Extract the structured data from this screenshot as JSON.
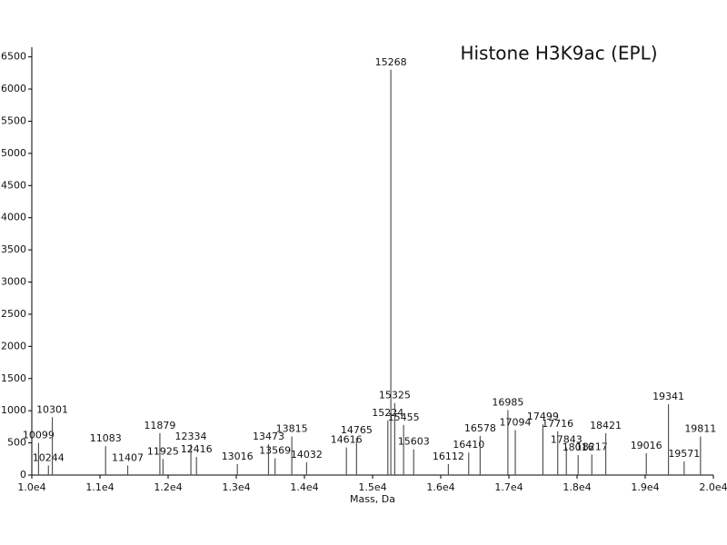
{
  "chart_data": {
    "type": "spectrum",
    "title": "Histone H3K9ac (EPL)",
    "x_label": "Mass, Da",
    "color": "#555555",
    "x": [
      10099,
      10244,
      10301,
      11083,
      11407,
      11879,
      11925,
      12334,
      12416,
      13016,
      13473,
      13569,
      13815,
      14032,
      14616,
      14765,
      15224,
      15268,
      15325,
      15455,
      15603,
      16112,
      16410,
      16578,
      16985,
      17094,
      17499,
      17716,
      17843,
      18016,
      18217,
      18421,
      19016,
      19341,
      19571,
      19811
    ],
    "values": [
      500,
      150,
      900,
      450,
      150,
      650,
      250,
      480,
      280,
      170,
      480,
      260,
      600,
      200,
      430,
      580,
      850,
      6300,
      1120,
      780,
      400,
      170,
      350,
      610,
      1010,
      700,
      790,
      680,
      430,
      310,
      320,
      650,
      340,
      1100,
      210,
      600
    ],
    "xlim": [
      10000,
      20000
    ],
    "xticks": [
      {
        "value": 10000,
        "label": "1.0e4"
      },
      {
        "value": 11000,
        "label": "1.1e4"
      },
      {
        "value": 12000,
        "label": "1.2e4"
      },
      {
        "value": 13000,
        "label": "1.3e4"
      },
      {
        "value": 14000,
        "label": "1.4e4"
      },
      {
        "value": 15000,
        "label": "1.5e4"
      },
      {
        "value": 16000,
        "label": "1.6e4"
      },
      {
        "value": 17000,
        "label": "1.7e4"
      },
      {
        "value": 18000,
        "label": "1.8e4"
      },
      {
        "value": 19000,
        "label": "1.9e4"
      },
      {
        "value": 20000,
        "label": "2.0e4"
      }
    ],
    "ylim": [
      0,
      6650
    ],
    "yticks": [
      0,
      500,
      1000,
      1500,
      2000,
      2500,
      3000,
      3500,
      4000,
      4500,
      5000,
      5500,
      6000,
      6500
    ]
  }
}
